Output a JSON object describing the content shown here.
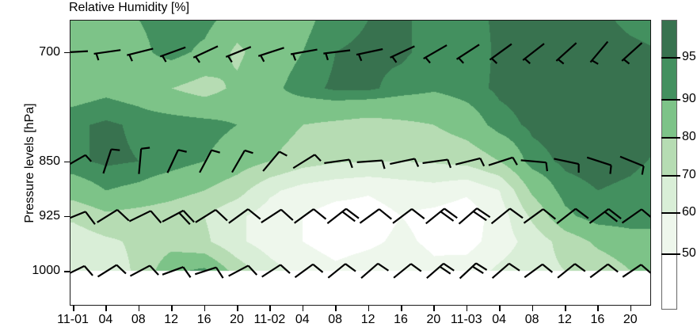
{
  "title": "Relative Humidity [%]",
  "y_axis": {
    "label": "Pressure levels [hPa]",
    "tick_labels": [
      "700",
      "850",
      "925",
      "1000"
    ],
    "tick_pressures": [
      700,
      850,
      925,
      1000
    ]
  },
  "x_axis": {
    "tick_labels": [
      "11-01",
      "04",
      "08",
      "12",
      "16",
      "20",
      "11-02",
      "04",
      "08",
      "12",
      "16",
      "20",
      "11-03",
      "04",
      "08",
      "12",
      "16",
      "20"
    ]
  },
  "colorbar": {
    "boundary_labels": [
      "95",
      "90",
      "80",
      "70",
      "60",
      "50"
    ],
    "colors_low_to_high": [
      "#ffffff",
      "#eef7ec",
      "#d9eed7",
      "#b6dcb3",
      "#7dc388",
      "#43905f",
      "#38724f"
    ]
  },
  "chart_data": {
    "type": "heatmap",
    "title": "Relative Humidity [%]",
    "xlabel": "",
    "ylabel": "Pressure levels [hPa]",
    "x_categories": [
      "11-01",
      "04",
      "08",
      "12",
      "16",
      "20",
      "11-02",
      "04",
      "08",
      "12",
      "16",
      "20",
      "11-03",
      "04",
      "08",
      "12",
      "16",
      "20"
    ],
    "x_step_hours": 4,
    "contour_levels": [
      50,
      60,
      70,
      80,
      90,
      95
    ],
    "grid_pressures_hpa": [
      656,
      700,
      750,
      800,
      850,
      890,
      925,
      960,
      1000
    ],
    "rh_percent_grid": [
      [
        85,
        85,
        90,
        93,
        93,
        85,
        85,
        88,
        93,
        95,
        96,
        93,
        93,
        96,
        97,
        97,
        96,
        94,
        93
      ],
      [
        85,
        85,
        88,
        93,
        88,
        78,
        86,
        90,
        95,
        96,
        96,
        93,
        92,
        96,
        97,
        97,
        97,
        96,
        95
      ],
      [
        86,
        88,
        86,
        80,
        76,
        82,
        88,
        93,
        96,
        96,
        93,
        91,
        93,
        96,
        97,
        97,
        97,
        97,
        96
      ],
      [
        94,
        96,
        94,
        94,
        93,
        90,
        86,
        80,
        78,
        76,
        78,
        80,
        85,
        93,
        96,
        97,
        97,
        97,
        96
      ],
      [
        94,
        96,
        95,
        93,
        90,
        85,
        80,
        74,
        71,
        70,
        70,
        71,
        73,
        80,
        93,
        96,
        97,
        96,
        94
      ],
      [
        85,
        90,
        88,
        84,
        80,
        74,
        62,
        56,
        53,
        51,
        54,
        56,
        52,
        60,
        82,
        93,
        95,
        94,
        92
      ],
      [
        72,
        78,
        76,
        74,
        70,
        62,
        55,
        50,
        46,
        46,
        50,
        47,
        44,
        55,
        72,
        88,
        94,
        94,
        92
      ],
      [
        64,
        68,
        72,
        76,
        72,
        62,
        55,
        50,
        46,
        48,
        52,
        48,
        46,
        55,
        64,
        74,
        82,
        86,
        88
      ],
      [
        60,
        64,
        72,
        88,
        92,
        76,
        64,
        56,
        52,
        55,
        57,
        52,
        55,
        62,
        66,
        70,
        74,
        80,
        84
      ]
    ],
    "wind_barbs": {
      "levels_hpa": [
        700,
        850,
        925,
        1000
      ],
      "shaft_angles_deg": {
        "700": [
          3,
          8,
          14,
          20,
          25,
          22,
          18,
          10,
          7,
          12,
          25,
          30,
          33,
          36,
          38,
          42,
          50,
          42
        ],
        "850": [
          30,
          72,
          85,
          65,
          62,
          60,
          50,
          32,
          8,
          4,
          12,
          8,
          14,
          18,
          -5,
          -12,
          -18,
          -22
        ],
        "925": [
          22,
          32,
          26,
          28,
          32,
          36,
          33,
          36,
          38,
          36,
          37,
          39,
          41,
          39,
          36,
          38,
          37,
          35
        ],
        "1000": [
          26,
          32,
          28,
          20,
          18,
          28,
          33,
          36,
          39,
          41,
          39,
          41,
          43,
          41,
          36,
          39,
          37,
          34
        ]
      },
      "feather_counts": {
        "700": [
          1,
          1,
          1,
          1,
          1,
          1,
          1,
          1,
          1,
          1,
          1,
          1,
          1,
          1,
          1,
          1,
          1,
          1
        ],
        "850": [
          1,
          1,
          1,
          1,
          1,
          1,
          1,
          1,
          1,
          1,
          1,
          1,
          1,
          1,
          1,
          1,
          1,
          1
        ],
        "925": [
          1,
          1,
          1,
          2,
          1,
          1,
          1,
          1,
          2,
          1,
          1,
          2,
          2,
          1,
          1,
          1,
          2,
          1
        ],
        "1000": [
          1,
          1,
          1,
          1,
          1,
          1,
          1,
          1,
          1,
          1,
          1,
          2,
          2,
          1,
          1,
          1,
          1,
          1
        ]
      },
      "style": {
        "700": {
          "len": 34,
          "feather_at": "tail",
          "f_len": 9,
          "f_off": -80
        },
        "850": {
          "len": 32,
          "feather_at": "tip",
          "f_len": 11,
          "f_off": -78
        },
        "925": {
          "len": 30,
          "feather_at": "tip",
          "f_len": 20,
          "f_off": -75
        },
        "1000": {
          "len": 28,
          "feather_at": "tip",
          "f_len": 16,
          "f_off": -75
        }
      }
    }
  }
}
